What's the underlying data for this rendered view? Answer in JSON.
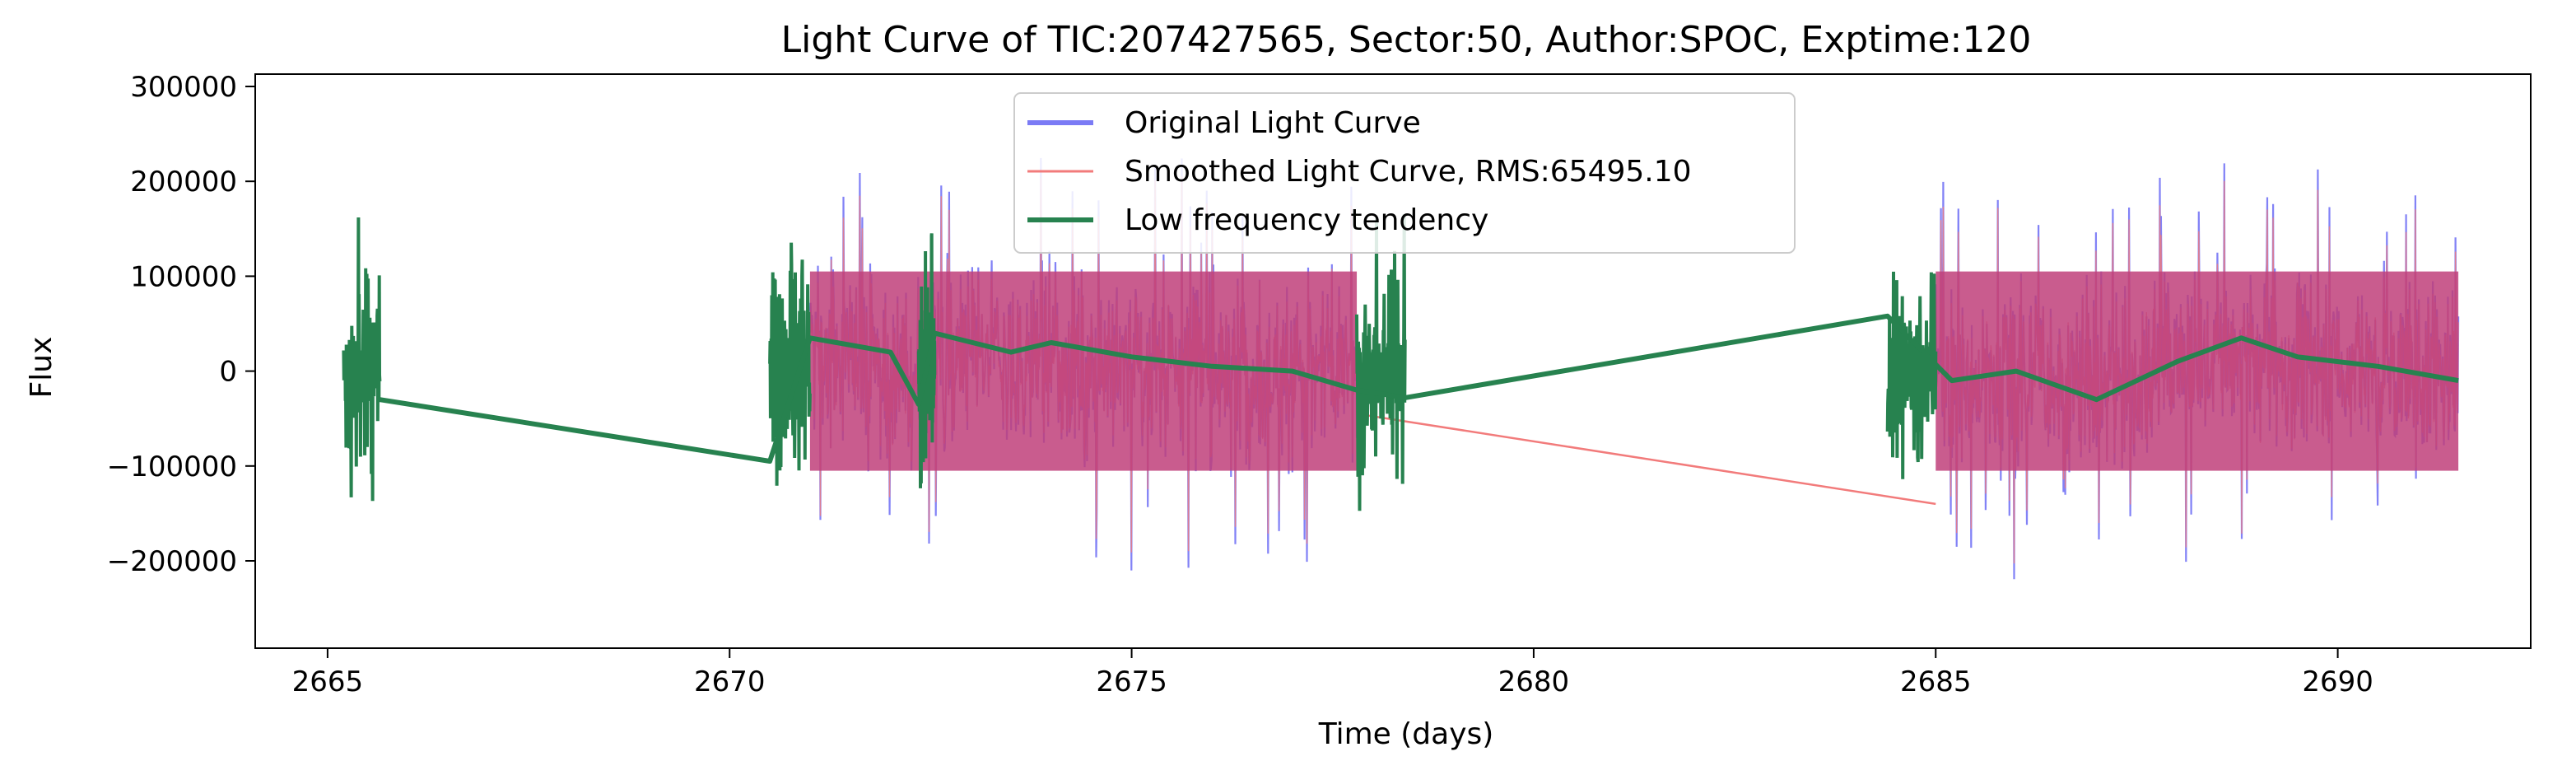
{
  "chart_data": {
    "type": "line",
    "title": "Light Curve of TIC:207427565, Sector:50, Author:SPOC, Exptime:120",
    "xlabel": "Time (days)",
    "ylabel": "Flux",
    "xlim": [
      2664.1,
      2692.4
    ],
    "ylim": [
      -292000,
      313000
    ],
    "x_ticks": [
      2665,
      2670,
      2675,
      2680,
      2685,
      2690
    ],
    "x_tick_labels": [
      "2665",
      "2670",
      "2675",
      "2680",
      "2685",
      "2690"
    ],
    "y_ticks": [
      -200000,
      -100000,
      0,
      100000,
      200000,
      300000
    ],
    "y_tick_labels": [
      "−200000",
      "−100000",
      "0",
      "100000",
      "200000",
      "300000"
    ],
    "grid": false,
    "legend_position": "upper center",
    "series": [
      {
        "name": "Original Light Curve",
        "color": "#7b7bf5",
        "segments": [
          [
            2671.0,
            2677.8
          ],
          [
            2685.0,
            2691.5
          ]
        ],
        "amplitude": 130000,
        "spike_max": 285000,
        "spike_min": -262000
      },
      {
        "name": "Smoothed Light Curve, RMS:65495.10",
        "color": "#f27b7b",
        "segments": [
          [
            2671.0,
            2677.8
          ],
          [
            2685.0,
            2691.5
          ]
        ],
        "amplitude": 120000,
        "connector": [
          [
            2677.8,
            -45000
          ],
          [
            2685.0,
            -140000
          ]
        ]
      },
      {
        "name": "Low frequency tendency",
        "color": "#27824f",
        "burst_segments": [
          [
            2665.2,
            2665.65
          ],
          [
            2670.5,
            2671.0
          ],
          [
            2672.35,
            2672.55
          ],
          [
            2677.8,
            2678.4
          ],
          [
            2684.4,
            2685.0
          ]
        ],
        "trend_points": [
          [
            2665.65,
            -30000
          ],
          [
            2670.5,
            -95000
          ],
          [
            2671.0,
            35000
          ],
          [
            2672.0,
            20000
          ],
          [
            2672.35,
            -35000
          ],
          [
            2672.55,
            40000
          ],
          [
            2673.5,
            20000
          ],
          [
            2674.0,
            30000
          ],
          [
            2675.0,
            15000
          ],
          [
            2676.0,
            5000
          ],
          [
            2677.0,
            0
          ],
          [
            2677.8,
            -20000
          ],
          [
            2678.4,
            -28000
          ],
          [
            2684.4,
            58000
          ],
          [
            2685.2,
            -10000
          ],
          [
            2686.0,
            0
          ],
          [
            2687.0,
            -30000
          ],
          [
            2688.0,
            10000
          ],
          [
            2688.8,
            35000
          ],
          [
            2689.5,
            15000
          ],
          [
            2690.5,
            5000
          ],
          [
            2691.5,
            -10000
          ]
        ]
      }
    ]
  }
}
